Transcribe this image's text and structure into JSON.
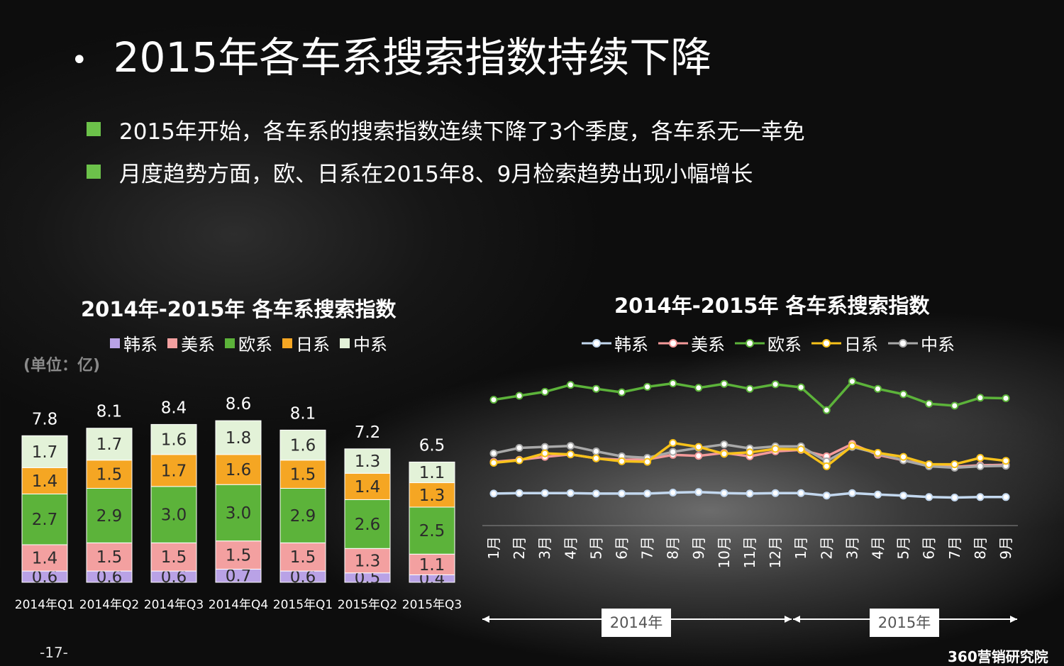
{
  "title": "2015年各车系搜索指数持续下降",
  "bullets": [
    "2015年开始，各车系的搜索指数连续下降了3个季度，各车系无一幸免",
    "月度趋势方面，欧、日系在2015年8、9月检索趋势出现小幅增长"
  ],
  "unit_label": "(单位：亿)",
  "page_number": "-17-",
  "brand": "360营销研究院",
  "colors": {
    "韩系": "#b9a2e6",
    "美系": "#f3a0a0",
    "欧系": "#5cb33a",
    "日系": "#f5a623",
    "中系": "#e3f2d8",
    "line_韩系": "#c3d8ef",
    "line_美系": "#f49a9a",
    "line_欧系": "#5cb33a",
    "line_日系": "#f8c21a",
    "line_中系": "#a9a9a9"
  },
  "chart_data": [
    {
      "type": "bar",
      "stacked": true,
      "title": "2014年-2015年  各车系搜索指数",
      "categories": [
        "2014年Q1",
        "2014年Q2",
        "2014年Q3",
        "2014年Q4",
        "2015年Q1",
        "2015年Q2",
        "2015年Q3"
      ],
      "series": [
        {
          "name": "韩系",
          "values": [
            0.6,
            0.6,
            0.6,
            0.7,
            0.6,
            0.5,
            0.4
          ]
        },
        {
          "name": "美系",
          "values": [
            1.4,
            1.5,
            1.5,
            1.5,
            1.5,
            1.3,
            1.1
          ]
        },
        {
          "name": "欧系",
          "values": [
            2.7,
            2.9,
            3.0,
            3.0,
            2.9,
            2.6,
            2.5
          ]
        },
        {
          "name": "日系",
          "values": [
            1.4,
            1.5,
            1.7,
            1.6,
            1.5,
            1.4,
            1.3
          ]
        },
        {
          "name": "中系",
          "values": [
            1.7,
            1.7,
            1.6,
            1.8,
            1.6,
            1.3,
            1.1
          ]
        }
      ],
      "totals": [
        7.8,
        8.1,
        8.4,
        8.6,
        8.1,
        7.2,
        6.5
      ],
      "legend": [
        "韩系",
        "美系",
        "欧系",
        "日系",
        "中系"
      ],
      "legend_position": "top",
      "ylim": [
        0,
        9
      ]
    },
    {
      "type": "line",
      "title": "2014年-2015年 各车系搜索指数",
      "categories": [
        "1月",
        "2月",
        "3月",
        "4月",
        "5月",
        "6月",
        "7月",
        "8月",
        "9月",
        "10月",
        "11月",
        "12月",
        "1月",
        "2月",
        "3月",
        "4月",
        "5月",
        "6月",
        "7月",
        "8月",
        "9月"
      ],
      "year_groups": [
        {
          "label": "2014年",
          "months": 12
        },
        {
          "label": "2015年",
          "months": 9
        }
      ],
      "series": [
        {
          "name": "韩系",
          "values": [
            0.63,
            0.64,
            0.64,
            0.64,
            0.63,
            0.63,
            0.63,
            0.65,
            0.66,
            0.64,
            0.63,
            0.64,
            0.64,
            0.59,
            0.64,
            0.61,
            0.59,
            0.56,
            0.55,
            0.56,
            0.56
          ]
        },
        {
          "name": "美系",
          "values": [
            1.27,
            1.31,
            1.37,
            1.42,
            1.34,
            1.31,
            1.32,
            1.41,
            1.39,
            1.45,
            1.38,
            1.48,
            1.51,
            1.38,
            1.63,
            1.41,
            1.3,
            1.2,
            1.17,
            1.2,
            1.21
          ]
        },
        {
          "name": "欧系",
          "values": [
            2.52,
            2.6,
            2.68,
            2.82,
            2.74,
            2.67,
            2.78,
            2.85,
            2.76,
            2.84,
            2.74,
            2.83,
            2.77,
            2.31,
            2.89,
            2.74,
            2.63,
            2.44,
            2.4,
            2.56,
            2.55
          ]
        },
        {
          "name": "日系",
          "values": [
            1.25,
            1.3,
            1.44,
            1.42,
            1.34,
            1.28,
            1.27,
            1.65,
            1.57,
            1.43,
            1.46,
            1.53,
            1.52,
            1.18,
            1.59,
            1.45,
            1.37,
            1.22,
            1.22,
            1.35,
            1.29
          ]
        },
        {
          "name": "中系",
          "values": [
            1.44,
            1.55,
            1.57,
            1.59,
            1.48,
            1.38,
            1.35,
            1.47,
            1.55,
            1.62,
            1.54,
            1.58,
            1.58,
            1.28,
            1.57,
            1.44,
            1.3,
            1.18,
            1.15,
            1.18,
            1.19
          ]
        }
      ],
      "legend": [
        "韩系",
        "美系",
        "欧系",
        "日系",
        "中系"
      ],
      "legend_position": "top",
      "ylim": [
        0,
        3.5
      ]
    }
  ]
}
